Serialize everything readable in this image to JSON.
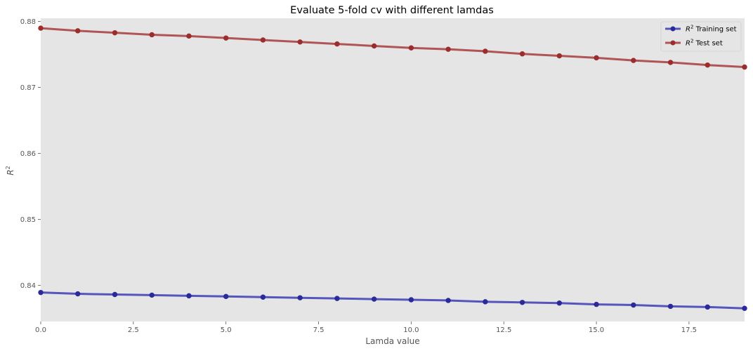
{
  "chart_data": {
    "type": "line",
    "title": "Evaluate 5-fold cv with different lamdas",
    "xlabel": "Lamda value",
    "ylabel": "R",
    "ylabel_sup": "2",
    "xlim": [
      0,
      19
    ],
    "ylim": [
      0.8345,
      0.8805
    ],
    "xticks": [
      0.0,
      2.5,
      5.0,
      7.5,
      10.0,
      12.5,
      15.0,
      17.5
    ],
    "xtick_labels": [
      "0.0",
      "2.5",
      "5.0",
      "7.5",
      "10.0",
      "12.5",
      "15.0",
      "17.5"
    ],
    "yticks": [
      0.84,
      0.85,
      0.86,
      0.87,
      0.88
    ],
    "ytick_labels": [
      "0.84",
      "0.85",
      "0.86",
      "0.87",
      "0.88"
    ],
    "grid": false,
    "legend_position": "top-right",
    "background": "#e5e5e5",
    "x": [
      0,
      1,
      2,
      3,
      4,
      5,
      6,
      7,
      8,
      9,
      10,
      11,
      12,
      13,
      14,
      15,
      16,
      17,
      18,
      19
    ],
    "series": [
      {
        "name_prefix": "R",
        "name_sup": "2",
        "name_suffix": " Training set",
        "color": "#5555bb",
        "marker_color": "#2a2a99",
        "values": [
          0.8389,
          0.8387,
          0.8386,
          0.8385,
          0.8384,
          0.8383,
          0.8382,
          0.8381,
          0.838,
          0.8379,
          0.8378,
          0.8377,
          0.8375,
          0.8374,
          0.8373,
          0.8371,
          0.837,
          0.8368,
          0.8367,
          0.8365
        ]
      },
      {
        "name_prefix": "R",
        "name_sup": "2",
        "name_suffix": " Test set",
        "color": "#b05555",
        "marker_color": "#9b2d2d",
        "values": [
          0.879,
          0.8786,
          0.8783,
          0.878,
          0.8778,
          0.8775,
          0.8772,
          0.8769,
          0.8766,
          0.8763,
          0.876,
          0.8758,
          0.8755,
          0.8751,
          0.8748,
          0.8745,
          0.8741,
          0.8738,
          0.8734,
          0.8731
        ]
      }
    ]
  }
}
